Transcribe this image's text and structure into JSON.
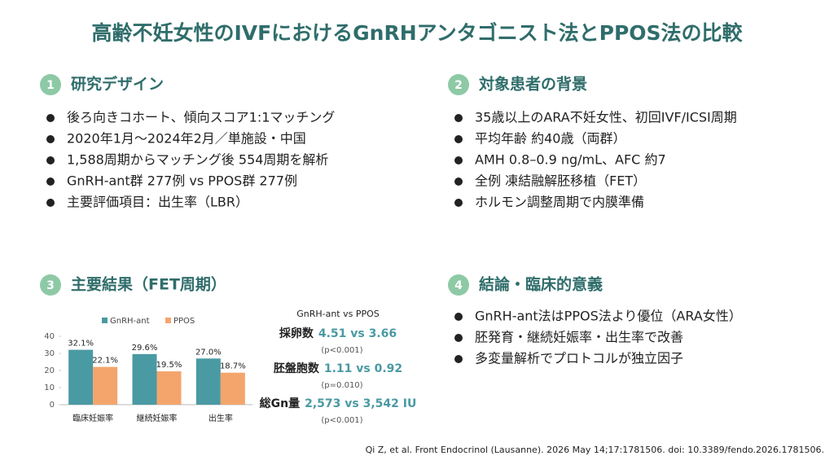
{
  "title": "高齢不妊女性のIVFにおけるGnRHアンタゴニスト法とPPOS法の比較",
  "sections": [
    {
      "number": "1",
      "heading": "研究デザイン",
      "bullets": [
        "後ろ向きコホート、傾向スコア1:1マッチング",
        "2020年1月～2024年2月／単施設・中国",
        "1,588周期からマッチング後 554周期を解析",
        "GnRH-ant群 277例 vs PPOS群 277例",
        "主要評価項目：出生率（LBR）"
      ]
    },
    {
      "number": "2",
      "heading": "対象患者の背景",
      "bullets": [
        "35歳以上のARA不妊女性、初回IVF/ICSI周期",
        "平均年齢 約40歳（両群）",
        "AMH 0.8–0.9 ng/mL、AFC 約7",
        "全例 凍結融解胚移植（FET）",
        "ホルモン調整周期で内膜準備"
      ]
    },
    {
      "number": "3",
      "heading": "主要結果（FET周期）",
      "chart_data": {
        "type": "bar",
        "categories": [
          "臨床妊娠率",
          "継続妊娠率",
          "出生率"
        ],
        "series": [
          {
            "name": "GnRH-ant",
            "color": "#4a9aa3",
            "values": [
              32.1,
              29.6,
              27.0
            ],
            "value_labels": [
              "32.1%",
              "29.6%",
              "27.0%"
            ]
          },
          {
            "name": "PPOS",
            "color": "#f4a56c",
            "values": [
              22.1,
              19.5,
              18.7
            ],
            "value_labels": [
              "22.1%",
              "19.5%",
              "18.7%"
            ]
          }
        ],
        "ylim": [
          0,
          40
        ],
        "yticks": [
          0,
          10,
          20,
          30,
          40
        ],
        "grid": false
      },
      "stats": {
        "header": "GnRH-ant vs PPOS",
        "items": [
          {
            "label": "採卵数",
            "value": "4.51 vs 3.66",
            "p": "(p<0.001)"
          },
          {
            "label": "胚盤胞数",
            "value": "1.11 vs 0.92",
            "p": "(p=0.010)"
          },
          {
            "label": "総Gn量",
            "value": "2,573 vs 3,542 IU",
            "p": "(p<0.001)"
          }
        ]
      }
    },
    {
      "number": "4",
      "heading": "結論・臨床的意義",
      "bullets": [
        "GnRH-ant法はPPOS法より優位（ARA女性）",
        "胚発育・継続妊娠率・出生率で改善",
        "多変量解析でプロトコルが独立因子"
      ]
    }
  ],
  "citation": "Qi Z, et al. Front Endocrinol (Lausanne). 2026 May 14;17:1781506. doi: 10.3389/fendo.2026.1781506."
}
